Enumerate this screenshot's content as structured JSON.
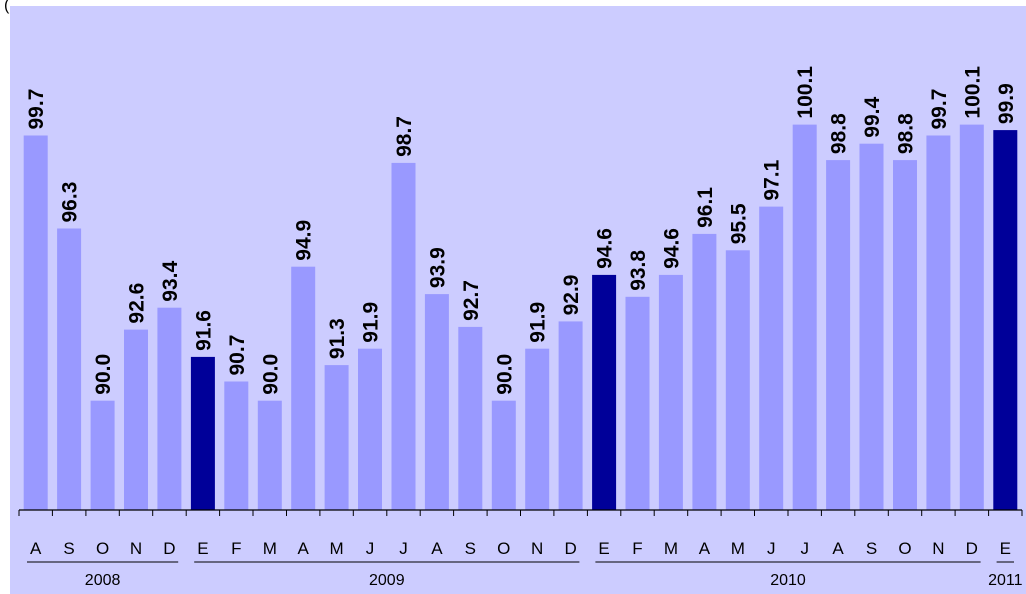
{
  "caption": "(",
  "chart_data": {
    "type": "bar",
    "colors": {
      "plot_bg": "#ccccff",
      "bar": "#9999ff",
      "bar_highlight": "#000099"
    },
    "categories": [
      "A",
      "S",
      "O",
      "N",
      "D",
      "E",
      "F",
      "M",
      "A",
      "M",
      "J",
      "J",
      "A",
      "S",
      "O",
      "N",
      "D",
      "E",
      "F",
      "M",
      "A",
      "M",
      "J",
      "J",
      "A",
      "S",
      "O",
      "N",
      "D",
      "E"
    ],
    "values": [
      99.7,
      96.3,
      90.0,
      92.6,
      93.4,
      91.6,
      90.7,
      90.0,
      94.9,
      91.3,
      91.9,
      98.7,
      93.9,
      92.7,
      90.0,
      91.9,
      92.9,
      94.6,
      93.8,
      94.6,
      96.1,
      95.5,
      97.1,
      100.1,
      98.8,
      99.4,
      98.8,
      99.7,
      100.1,
      99.9
    ],
    "value_labels": [
      "99.7",
      "96.3",
      "90.0",
      "92.6",
      "93.4",
      "91.6",
      "90.7",
      "90.0",
      "94.9",
      "91.3",
      "91.9",
      "98.7",
      "93.9",
      "92.7",
      "90.0",
      "91.9",
      "92.9",
      "94.6",
      "93.8",
      "94.6",
      "96.1",
      "95.5",
      "97.1",
      "100.1",
      "98.8",
      "99.4",
      "98.8",
      "99.7",
      "100.1",
      "99.9"
    ],
    "highlighted": [
      5,
      17,
      29
    ],
    "years": [
      {
        "label": "2008",
        "start": 0,
        "end": 4
      },
      {
        "label": "2009",
        "start": 5,
        "end": 16
      },
      {
        "label": "2010",
        "start": 17,
        "end": 28
      },
      {
        "label": "2011",
        "start": 29,
        "end": 29
      }
    ],
    "ylim": [
      86.0,
      101.0
    ],
    "grid": false,
    "title": "",
    "xlabel": "",
    "ylabel": ""
  }
}
